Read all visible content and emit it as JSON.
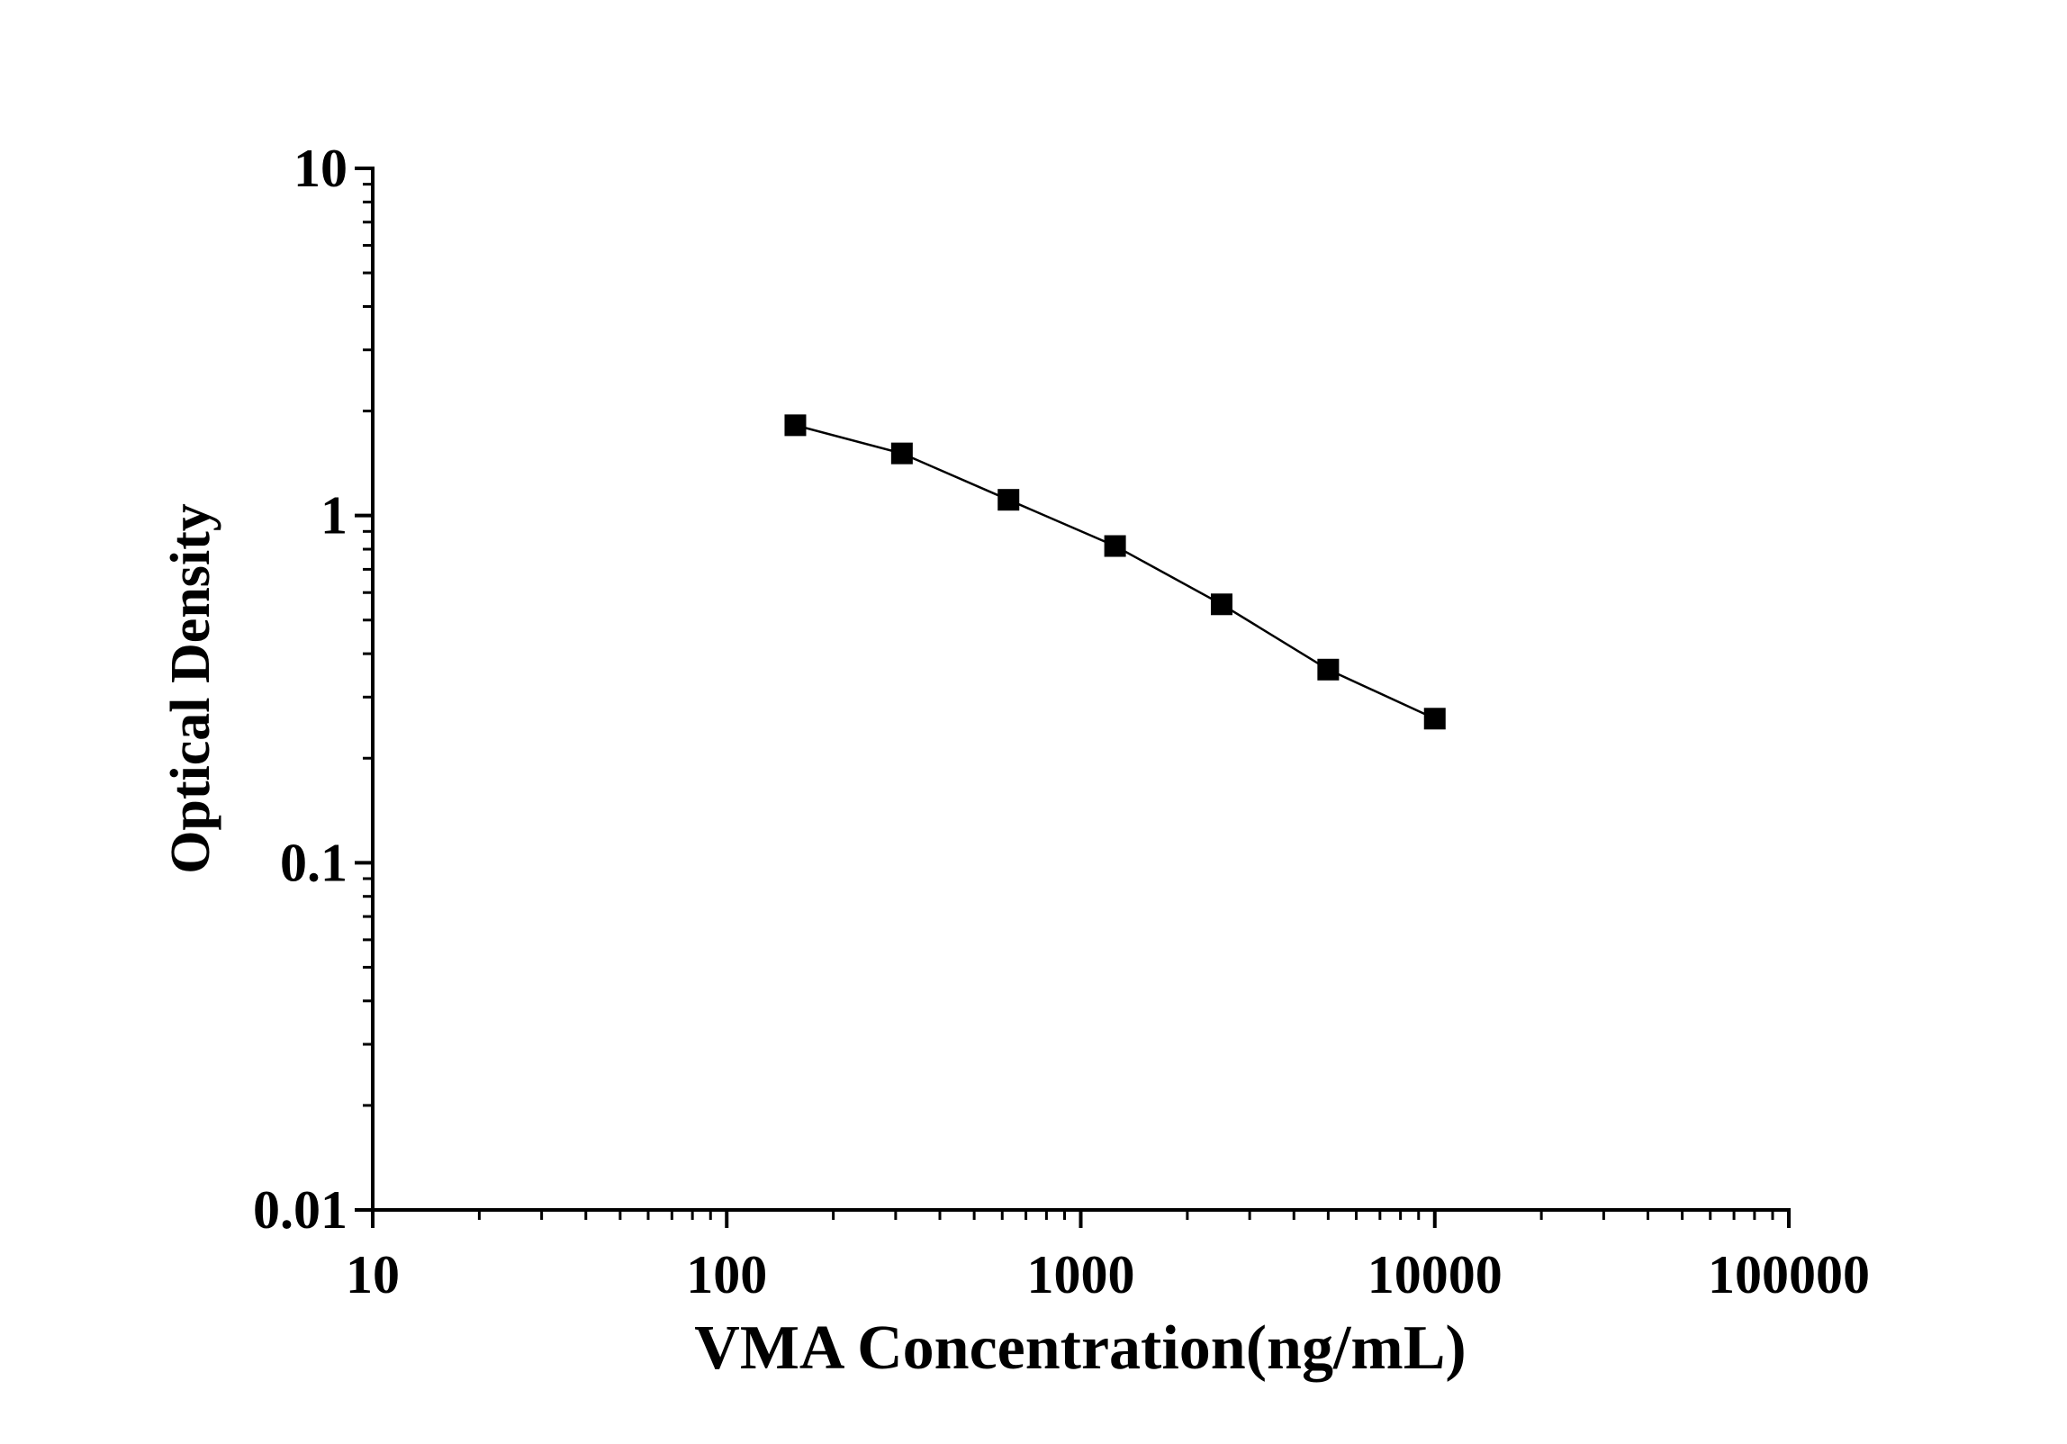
{
  "chart_data": {
    "type": "line",
    "title": "",
    "xlabel": "VMA Concentration(ng/mL)",
    "ylabel": "Optical Density",
    "xscale": "log",
    "yscale": "log",
    "xlim": [
      10,
      100000
    ],
    "ylim": [
      0.01,
      10
    ],
    "xticks": [
      "10",
      "100",
      "1000",
      "10000",
      "100000"
    ],
    "yticks": [
      "0.01",
      "0.1",
      "1",
      "10"
    ],
    "grid": false,
    "marker": "square",
    "color": "#000000",
    "series": [
      {
        "x": [
          156.25,
          312.5,
          625,
          1250,
          2500,
          5000,
          10000
        ],
        "y": [
          1.82,
          1.51,
          1.11,
          0.817,
          0.555,
          0.36,
          0.26
        ]
      }
    ]
  }
}
